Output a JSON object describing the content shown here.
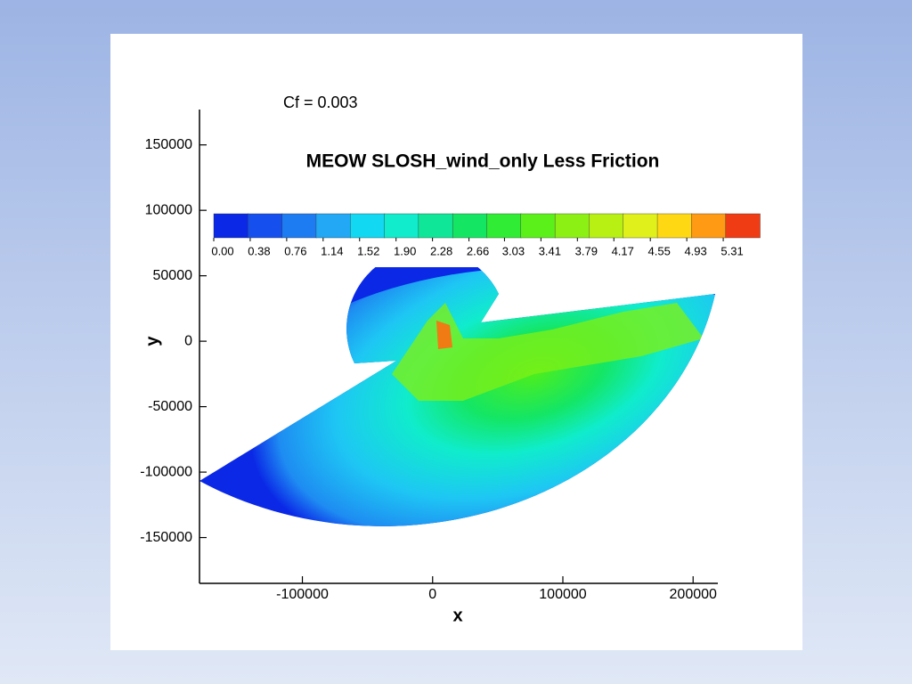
{
  "chart_data": {
    "type": "contour",
    "annotation": "Cf = 0.003",
    "title": "MEOW SLOSH_wind_only Less Friction",
    "x_label": "x",
    "y_label": "y",
    "xlim": [
      -179000,
      219000
    ],
    "ylim": [
      -185000,
      177000
    ],
    "xticks": [
      -100000,
      0,
      100000,
      200000
    ],
    "yticks": [
      -150000,
      -100000,
      -50000,
      0,
      50000,
      100000,
      150000
    ],
    "colorbar_lim": [
      0,
      5.69
    ],
    "colorbar_ticks": [
      {
        "value": 0,
        "label": "0.00"
      },
      0.38,
      0.76,
      1.14,
      1.52,
      {
        "value": 1.9,
        "label": "1.90"
      },
      2.28,
      2.66,
      3.03,
      3.41,
      3.79,
      4.17,
      4.55,
      4.93,
      5.31
    ],
    "colorbar_colors": [
      "#0a28e6",
      "#1550ee",
      "#1e7cf2",
      "#22a8f5",
      "#12d8f2",
      "#10eccc",
      "#10e698",
      "#14e664",
      "#30ec34",
      "#5cf01a",
      "#8cf014",
      "#b8f014",
      "#e0f01a",
      "#ffd814",
      "#ff9a14",
      "#f03c14"
    ]
  }
}
